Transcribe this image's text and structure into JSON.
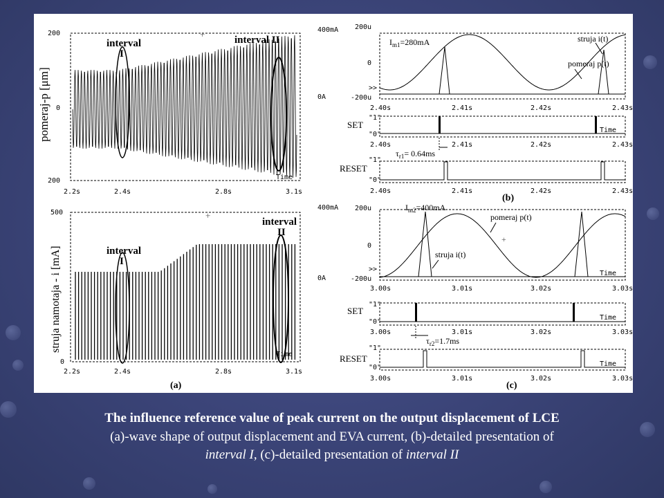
{
  "panel_a_top": {
    "y_label": "pomeraj-p [μm]",
    "y_ticks": [
      "200",
      "0",
      "200"
    ],
    "x_ticks": [
      "2.2s",
      "2.4s",
      "2.8s",
      "3.1s"
    ],
    "interval1": "interval\nI",
    "interval2": "interval II",
    "time_label": "Time"
  },
  "panel_a_bottom": {
    "y_label": "struja namotaja - i [mA]",
    "y_ticks": [
      "500",
      "0"
    ],
    "x_ticks": [
      "2.2s",
      "2.4s",
      "2.8s",
      "3.1s"
    ],
    "interval1": "interval\nI",
    "interval2": "interval\nII",
    "time_label": "Time",
    "panel_label": "(a)"
  },
  "panel_b": {
    "ticks_left": [
      "400mA",
      "0A"
    ],
    "ticks_mid": [
      "200u",
      "0",
      "-200u"
    ],
    "peak_label": "I",
    "peak_sub": "m1",
    "peak_value": "=280mA",
    "struja_label": "struja i(t)",
    "pomeraj_label": "pomeraj p(t)",
    "x_ticks": [
      "2.40s",
      "2.41s",
      "2.42s",
      "2.43s"
    ],
    "set_label": "SET",
    "reset_label": "RESET",
    "digital_hi": "\"1\"",
    "digital_lo": "\"0\"",
    "tau_label": "τ",
    "tau_sub": "r1",
    "tau_value": "= 0.64ms",
    "time_label": "Time",
    "panel_label": "(b)"
  },
  "panel_c": {
    "ticks_left": [
      "400mA",
      "0A"
    ],
    "ticks_mid": [
      "200u",
      "0",
      "-200u"
    ],
    "peak_label": "I",
    "peak_sub": "m2",
    "peak_value": "=400mA",
    "struja_label": "struja i(t)",
    "pomeraj_label": "pomeraj p(t)",
    "x_ticks": [
      "3.00s",
      "3.01s",
      "3.02s",
      "3.03s"
    ],
    "set_label": "SET",
    "reset_label": "RESET",
    "digital_hi": "\"1\"",
    "digital_lo": "\"0\"",
    "tau_label": "τ",
    "tau_sub": "r2",
    "tau_value": "=1.7ms",
    "time_label": "Time",
    "panel_label": "(c)"
  },
  "caption": {
    "line1": "The influence reference value of peak current on the output displacement of LCE",
    "line2": "(a)-wave shape of output displacement and EVA current,  (b)-detailed presentation of",
    "line3_em1": "interval I",
    "line3_mid": ", (c)-detailed presentation of ",
    "line3_em2": "interval II"
  }
}
